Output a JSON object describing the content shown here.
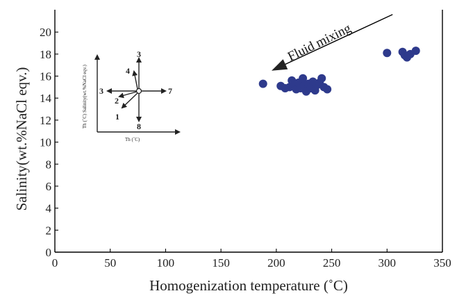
{
  "chart_data": {
    "type": "scatter",
    "title": "",
    "xlabel": "Homogenization temperature (˚C)",
    "ylabel": "Salinity(wt.%NaCl eqv.)",
    "xlim": [
      0,
      350
    ],
    "ylim": [
      0,
      22
    ],
    "x_ticks": [
      0,
      50,
      100,
      150,
      200,
      250,
      300,
      350
    ],
    "y_ticks": [
      0,
      2,
      4,
      6,
      8,
      10,
      12,
      14,
      16,
      18,
      20
    ],
    "grid": false,
    "legend": "none",
    "point_color": "#2e3a8c",
    "points": [
      {
        "x": 188,
        "y": 15.3
      },
      {
        "x": 204,
        "y": 15.1
      },
      {
        "x": 208,
        "y": 14.9
      },
      {
        "x": 212,
        "y": 15.0
      },
      {
        "x": 214,
        "y": 15.6
      },
      {
        "x": 216,
        "y": 15.2
      },
      {
        "x": 218,
        "y": 14.8
      },
      {
        "x": 220,
        "y": 15.4
      },
      {
        "x": 222,
        "y": 14.9
      },
      {
        "x": 224,
        "y": 15.8
      },
      {
        "x": 225,
        "y": 15.1
      },
      {
        "x": 227,
        "y": 14.6
      },
      {
        "x": 229,
        "y": 15.3
      },
      {
        "x": 231,
        "y": 14.9
      },
      {
        "x": 233,
        "y": 15.5
      },
      {
        "x": 235,
        "y": 14.7
      },
      {
        "x": 237,
        "y": 15.2
      },
      {
        "x": 239,
        "y": 15.4
      },
      {
        "x": 241,
        "y": 15.8
      },
      {
        "x": 243,
        "y": 15.0
      },
      {
        "x": 246,
        "y": 14.8
      },
      {
        "x": 300,
        "y": 18.1
      },
      {
        "x": 314,
        "y": 18.2
      },
      {
        "x": 316,
        "y": 17.9
      },
      {
        "x": 318,
        "y": 17.7
      },
      {
        "x": 321,
        "y": 18.0
      },
      {
        "x": 326,
        "y": 18.3
      }
    ],
    "annotations": [
      {
        "text": "Fluid mixing",
        "arrow_from": {
          "x": 305,
          "y": 21.6
        },
        "arrow_to": {
          "x": 198,
          "y": 16.6
        }
      }
    ],
    "inset": {
      "xlabel": "Th (˚C)",
      "ylabel": "Th (˚C) Salinity(wt.%NaCl eqv.)",
      "arrow_labels": [
        "1",
        "2",
        "3",
        "4",
        "3",
        "7",
        "8"
      ]
    }
  }
}
